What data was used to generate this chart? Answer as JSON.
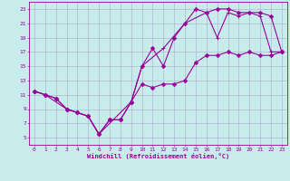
{
  "bg_color": "#c8ecec",
  "line_color": "#990099",
  "grid_color": "#aaaacc",
  "xlabel": "Windchill (Refroidissement éolien,°C)",
  "xlim": [
    -0.5,
    23.5
  ],
  "ylim": [
    4,
    24
  ],
  "xticks": [
    0,
    1,
    2,
    3,
    4,
    5,
    6,
    7,
    8,
    9,
    10,
    11,
    12,
    13,
    14,
    15,
    16,
    17,
    18,
    19,
    20,
    21,
    22,
    23
  ],
  "yticks": [
    5,
    7,
    9,
    11,
    13,
    15,
    17,
    19,
    21,
    23
  ],
  "line1_x": [
    0,
    1,
    2,
    3,
    4,
    5,
    6,
    7,
    8,
    9,
    10,
    11,
    12,
    13,
    14,
    15,
    16,
    17,
    18,
    19,
    20,
    21,
    22,
    23
  ],
  "line1_y": [
    11.5,
    11.0,
    10.5,
    9.0,
    8.5,
    8.0,
    5.5,
    7.5,
    7.5,
    10.0,
    12.5,
    12.0,
    12.5,
    12.5,
    13.0,
    15.5,
    16.5,
    16.5,
    17.0,
    16.5,
    17.0,
    16.5,
    16.5,
    17.0
  ],
  "line2_x": [
    0,
    1,
    2,
    3,
    4,
    5,
    6,
    7,
    8,
    9,
    10,
    11,
    12,
    13,
    14,
    15,
    16,
    17,
    18,
    19,
    20,
    21,
    22,
    23
  ],
  "line2_y": [
    11.5,
    11.0,
    10.5,
    9.0,
    8.5,
    8.0,
    5.5,
    7.5,
    7.5,
    10.0,
    15.0,
    17.5,
    15.0,
    19.0,
    21.0,
    23.0,
    22.5,
    23.0,
    23.0,
    22.5,
    22.5,
    22.5,
    22.0,
    17.0
  ],
  "line3_x": [
    0,
    1,
    3,
    5,
    6,
    9,
    10,
    12,
    14,
    16,
    17,
    18,
    19,
    20,
    21,
    22,
    23
  ],
  "line3_y": [
    11.5,
    11.0,
    9.0,
    8.0,
    5.5,
    10.0,
    15.0,
    17.5,
    21.0,
    22.5,
    19.0,
    22.5,
    22.0,
    22.5,
    22.0,
    17.0,
    17.0
  ],
  "tick_fontsize": 4.5,
  "xlabel_fontsize": 5.0,
  "marker_size": 2.5,
  "linewidth": 0.8
}
